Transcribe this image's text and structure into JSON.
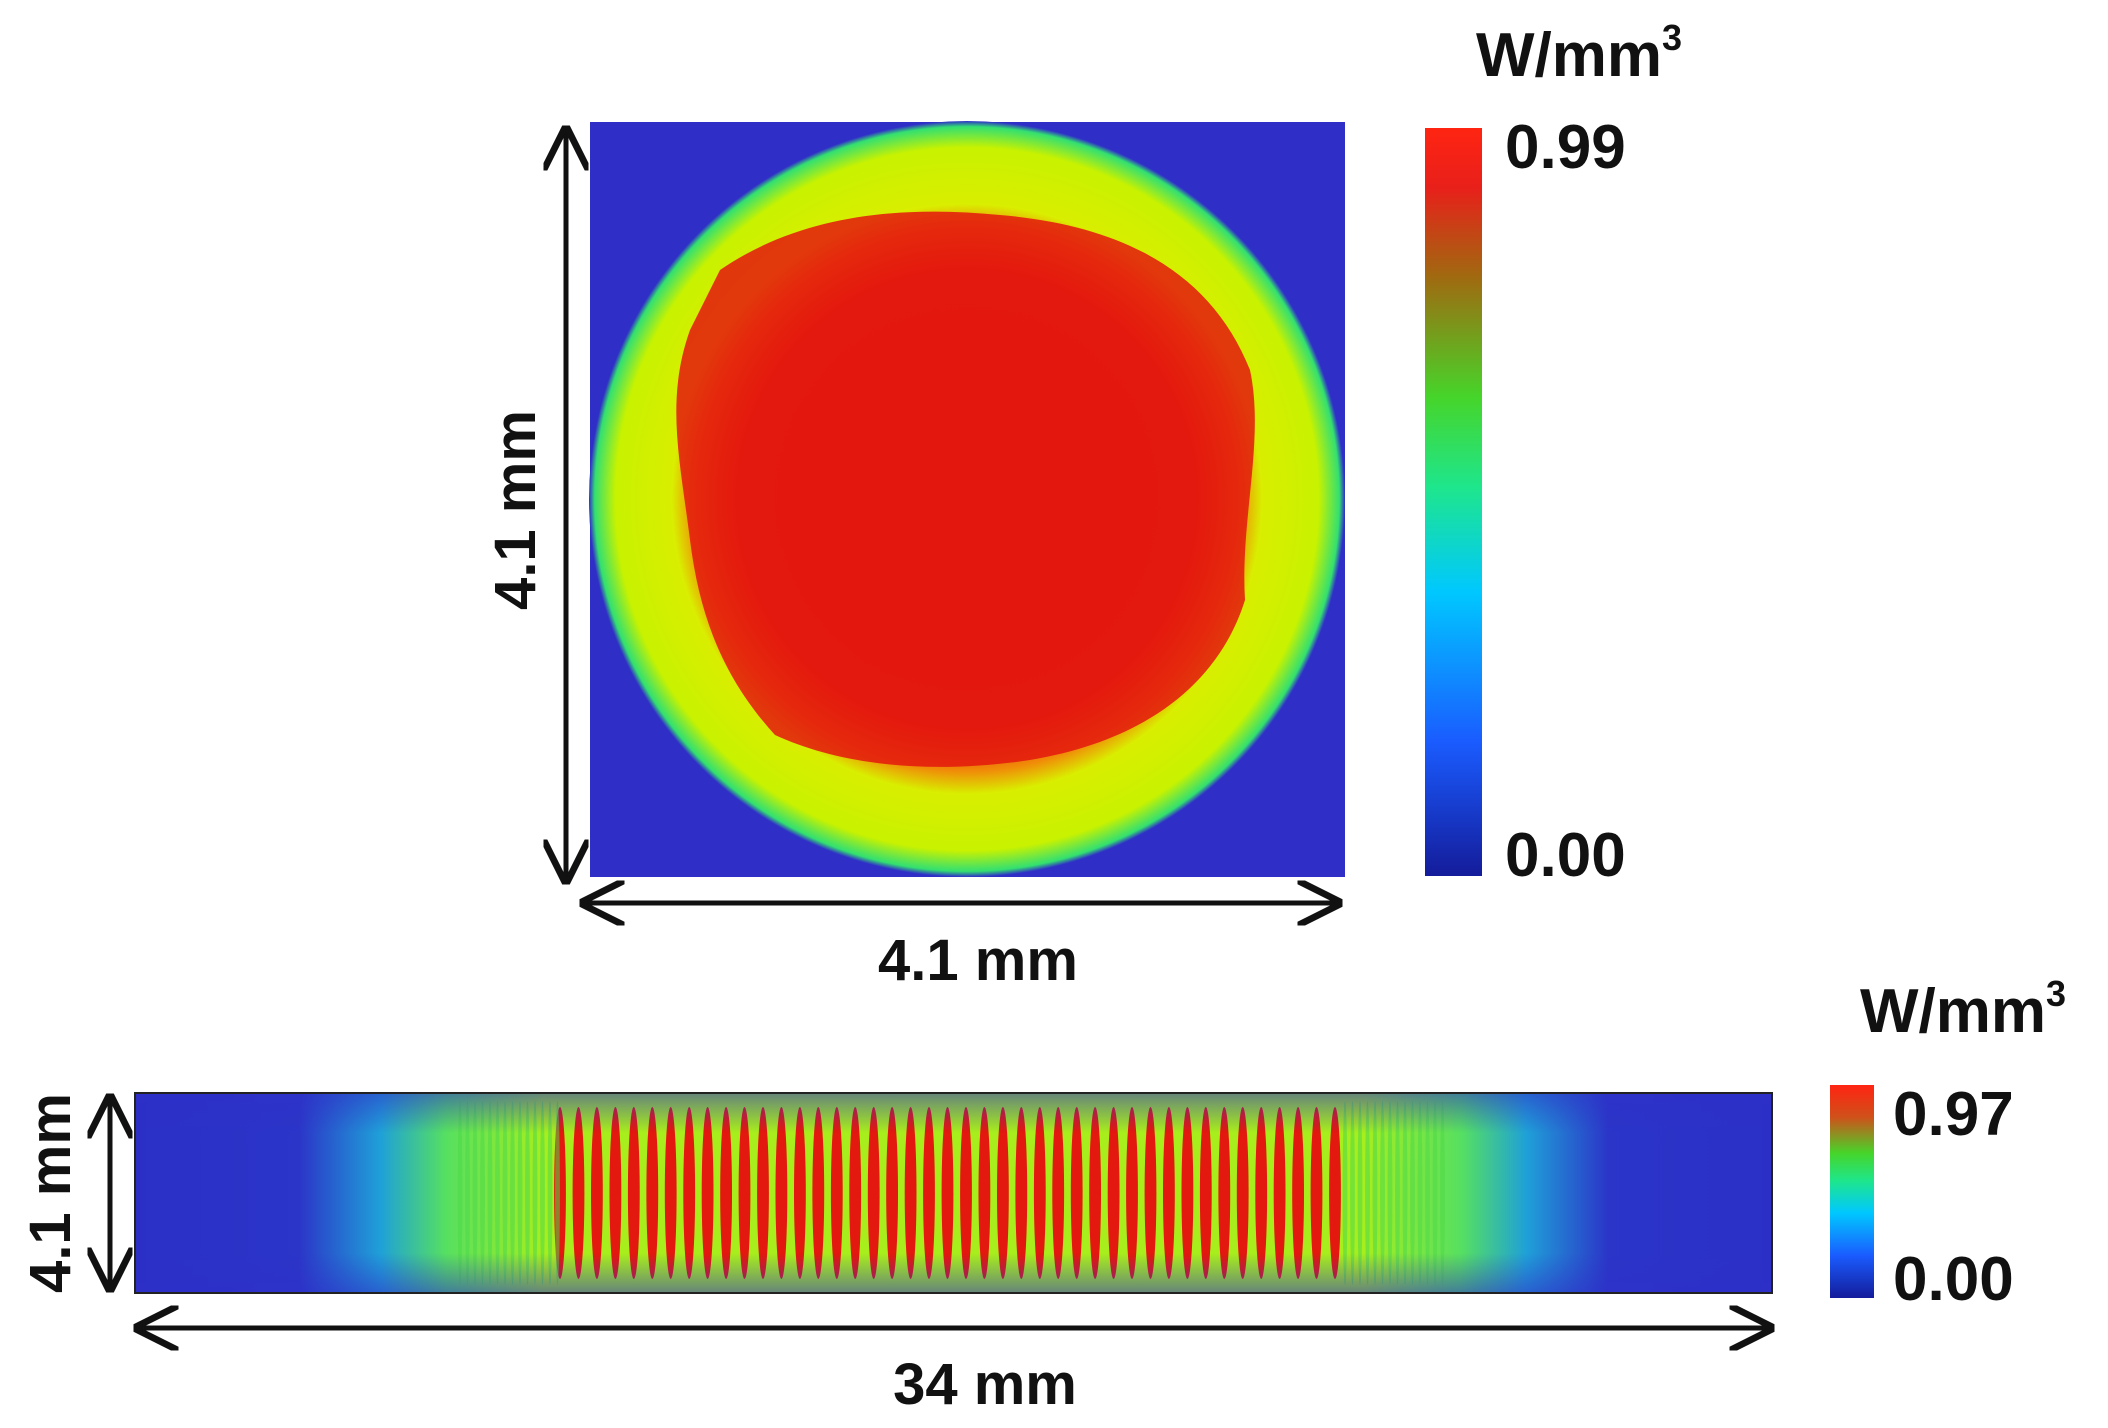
{
  "chart_data": [
    {
      "type": "heatmap",
      "panel": "cross-section",
      "description_values": "absorbed power density map, circular rod cross-section",
      "x_dimension_label": "4.1 mm",
      "y_dimension_label": "4.1 mm",
      "colorbar": {
        "unit_base": "W/mm",
        "unit_exp": "3",
        "min_label": "0.00",
        "max_label": "0.99",
        "min": 0.0,
        "max": 0.99
      },
      "regions": [
        {
          "region": "outside rod",
          "value": 0.0
        },
        {
          "region": "outer ring",
          "value": 0.65
        },
        {
          "region": "core",
          "value": 0.96
        }
      ]
    },
    {
      "type": "heatmap",
      "panel": "longitudinal",
      "x_dimension_label": "34 mm",
      "y_dimension_label": "4.1 mm",
      "colorbar": {
        "unit_base": "W/mm",
        "unit_exp": "3",
        "min_label": "0.00",
        "max_label": "0.97",
        "min": 0.0,
        "max": 0.97
      },
      "fringes": 42
    }
  ],
  "colors": {
    "background_blue": "#2f2fc8",
    "ring_yellow": "#d8f200",
    "core_red": "#e21a10",
    "colorbar_stops": [
      "#141c9a",
      "#1a5cff",
      "#00c8ff",
      "#1ee68c",
      "#46d52a",
      "#a06a10",
      "#e8201a",
      "#ff2412"
    ]
  }
}
